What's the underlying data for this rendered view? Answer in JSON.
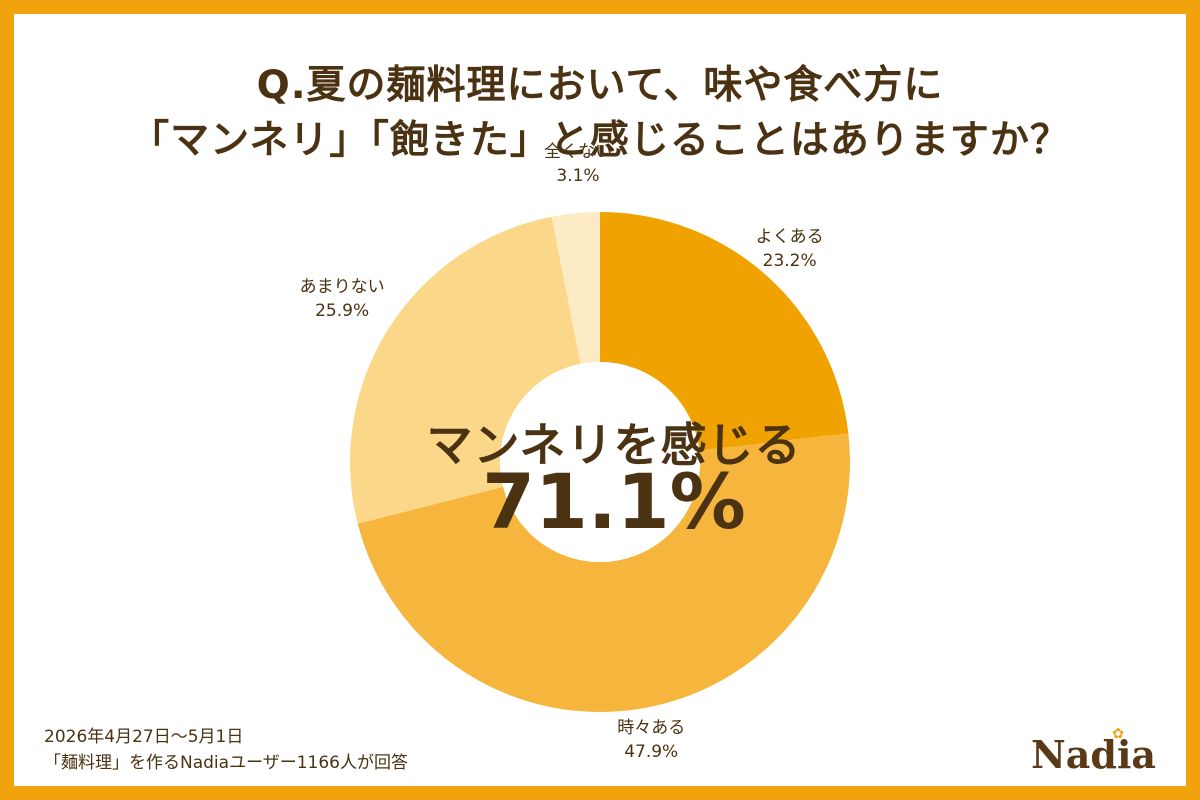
{
  "chart_data": {
    "type": "pie",
    "title": "Q.夏の麺料理において、味や食べ方に\n「マンネリ」「飽きた」と感じることはありますか？",
    "title_lines": [
      "Q.夏の麺料理において、味や食べ方に",
      "「マンネリ」「飽きた」と感じることはありますか？"
    ],
    "donut": true,
    "start_angle": "12 o'clock, clockwise",
    "slices": [
      {
        "label": "よくある",
        "value": 23.2,
        "display": "23.2%",
        "color": "#f0a300"
      },
      {
        "label": "時々ある",
        "value": 47.9,
        "display": "47.9%",
        "color": "#f6b63d"
      },
      {
        "label": "あまりない",
        "value": 25.9,
        "display": "25.9%",
        "color": "#fbd889"
      },
      {
        "label": "全くない",
        "value": 3.1,
        "display": "3.1%",
        "color": "#fdebc6"
      }
    ],
    "center_caption": "マンネリを感じる",
    "center_value": "71.1%"
  },
  "footer": {
    "period": "2026年4月27日～5月1日",
    "respondents": "「麺料理」を作るNadiaユーザー1166人が回答"
  },
  "brand": {
    "name": "Nadia",
    "mark": "✿"
  },
  "colors": {
    "frame": "#f2a20d",
    "text": "#4a3212"
  }
}
